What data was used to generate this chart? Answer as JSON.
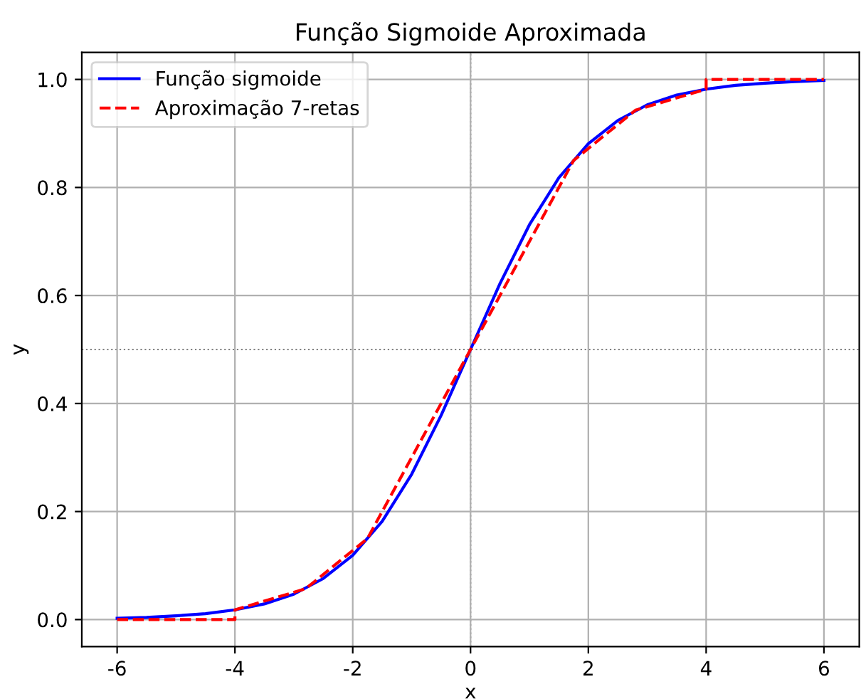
{
  "chart_data": {
    "type": "line",
    "title": "Função Sigmoide Aproximada",
    "xlabel": "x",
    "ylabel": "y",
    "series": [
      {
        "name": "Função sigmoide",
        "color": "#0000ff",
        "line_style": "solid",
        "x": [
          -6,
          -5.5,
          -5,
          -4.5,
          -4,
          -3.5,
          -3,
          -2.5,
          -2,
          -1.5,
          -1,
          -0.5,
          0,
          0.5,
          1,
          1.5,
          2,
          2.5,
          3,
          3.5,
          4,
          4.5,
          5,
          5.5,
          6
        ],
        "values": [
          0.0025,
          0.004,
          0.007,
          0.011,
          0.018,
          0.029,
          0.047,
          0.076,
          0.119,
          0.182,
          0.269,
          0.378,
          0.5,
          0.622,
          0.731,
          0.818,
          0.881,
          0.924,
          0.953,
          0.971,
          0.982,
          0.989,
          0.993,
          0.996,
          0.998
        ]
      },
      {
        "name": "Aproximação 7-retas",
        "color": "#ff0000",
        "line_style": "dashed",
        "x": [
          -6,
          -4,
          -4,
          -2.8,
          -1.75,
          0,
          1.75,
          2.8,
          4,
          4,
          6
        ],
        "values": [
          0,
          0,
          0.018,
          0.057,
          0.15,
          0.5,
          0.85,
          0.943,
          0.982,
          1,
          1
        ]
      }
    ],
    "ref_lines": [
      {
        "axis": "y",
        "value": 0.5,
        "color": "#808080",
        "line_style": "dotted"
      },
      {
        "axis": "x",
        "value": 0,
        "color": "#808080",
        "line_style": "dotted"
      }
    ],
    "xlim": [
      -6.6,
      6.6
    ],
    "ylim": [
      -0.05,
      1.05
    ],
    "xticks": [
      -6,
      -4,
      -2,
      0,
      2,
      4,
      6
    ],
    "yticks": [
      {
        "value": 0,
        "label": "0.0"
      },
      {
        "value": 0.2,
        "label": "0.2"
      },
      {
        "value": 0.4,
        "label": "0.4"
      },
      {
        "value": 0.6,
        "label": "0.6"
      },
      {
        "value": 0.8,
        "label": "0.8"
      },
      {
        "value": 1,
        "label": "1.0"
      }
    ],
    "grid": true,
    "legend": "top left"
  }
}
